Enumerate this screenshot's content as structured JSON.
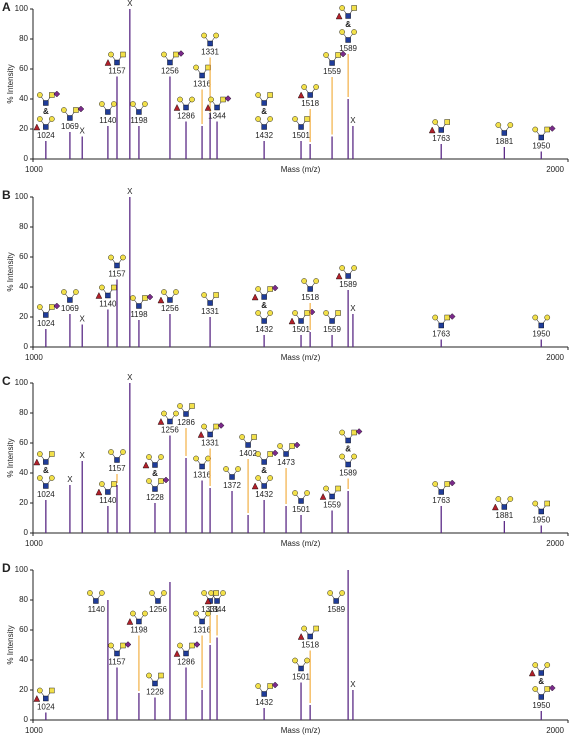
{
  "chart_data": [
    {
      "type": "spectrum",
      "panel": "A",
      "x_label": "Mass (m/z)",
      "y_label": "% Intensity",
      "color": "#5b2a86",
      "amp": "&",
      "xlim": [
        1000,
        2000
      ],
      "xticks": [
        1000,
        2000
      ],
      "ylim": [
        0,
        100
      ],
      "yticks": [
        0,
        20,
        40,
        60,
        80,
        100
      ],
      "x": [
        1024,
        1069,
        1140,
        1157,
        1198,
        1256,
        1286,
        1316,
        1331,
        1344,
        1432,
        1501,
        1518,
        1559,
        1589,
        1763,
        1881,
        1950
      ],
      "values": [
        12,
        18,
        22,
        55,
        22,
        55,
        25,
        22,
        30,
        25,
        12,
        12,
        10,
        15,
        40,
        10,
        8,
        5
      ],
      "other_peaks": {
        "label": "X",
        "x": [
          1092,
          1181,
          1598
        ],
        "values": [
          15,
          100,
          22
        ]
      }
    },
    {
      "type": "spectrum",
      "panel": "B",
      "x_label": "Mass (m/z)",
      "y_label": "% Intensity",
      "color": "#5b2a86",
      "amp": "&",
      "xlim": [
        1000,
        2000
      ],
      "xticks": [
        1000,
        2000
      ],
      "ylim": [
        0,
        100
      ],
      "yticks": [
        0,
        20,
        40,
        60,
        80,
        100
      ],
      "x": [
        1024,
        1069,
        1140,
        1157,
        1198,
        1256,
        1331,
        1432,
        1501,
        1518,
        1559,
        1589,
        1763,
        1950
      ],
      "values": [
        12,
        22,
        25,
        45,
        18,
        22,
        20,
        8,
        8,
        10,
        8,
        38,
        5,
        5
      ],
      "other_peaks": {
        "label": "X",
        "x": [
          1092,
          1181,
          1598
        ],
        "values": [
          15,
          100,
          22
        ]
      }
    },
    {
      "type": "spectrum",
      "panel": "C",
      "x_label": "Mass (m/z)",
      "y_label": "% Intensity",
      "color": "#5b2a86",
      "amp": "&",
      "xlim": [
        1000,
        2000
      ],
      "xticks": [
        1000,
        2000
      ],
      "ylim": [
        0,
        100
      ],
      "yticks": [
        0,
        20,
        40,
        60,
        80,
        100
      ],
      "x": [
        1024,
        1140,
        1157,
        1228,
        1256,
        1286,
        1316,
        1331,
        1372,
        1402,
        1432,
        1473,
        1501,
        1559,
        1589,
        1763,
        1881,
        1950
      ],
      "values": [
        22,
        18,
        32,
        20,
        65,
        50,
        35,
        30,
        28,
        12,
        22,
        18,
        12,
        15,
        28,
        18,
        8,
        5
      ],
      "other_peaks": {
        "label": "X",
        "x": [
          1069,
          1092,
          1181
        ],
        "values": [
          32,
          48,
          100
        ]
      }
    },
    {
      "type": "spectrum",
      "panel": "D",
      "x_label": "Mass (m/z)",
      "y_label": "% Intensity",
      "color": "#5b2a86",
      "amp": "&",
      "xlim": [
        1000,
        2000
      ],
      "xticks": [
        1000,
        2000
      ],
      "ylim": [
        0,
        100
      ],
      "yticks": [
        0,
        20,
        40,
        60,
        80,
        100
      ],
      "x": [
        1024,
        1140,
        1157,
        1198,
        1228,
        1256,
        1286,
        1316,
        1331,
        1344,
        1432,
        1501,
        1518,
        1589,
        1950
      ],
      "values": [
        5,
        80,
        35,
        18,
        15,
        92,
        35,
        20,
        50,
        55,
        8,
        25,
        10,
        100,
        6
      ],
      "other_peaks": {
        "label": "X",
        "x": [
          1598
        ],
        "values": [
          20
        ]
      }
    }
  ]
}
